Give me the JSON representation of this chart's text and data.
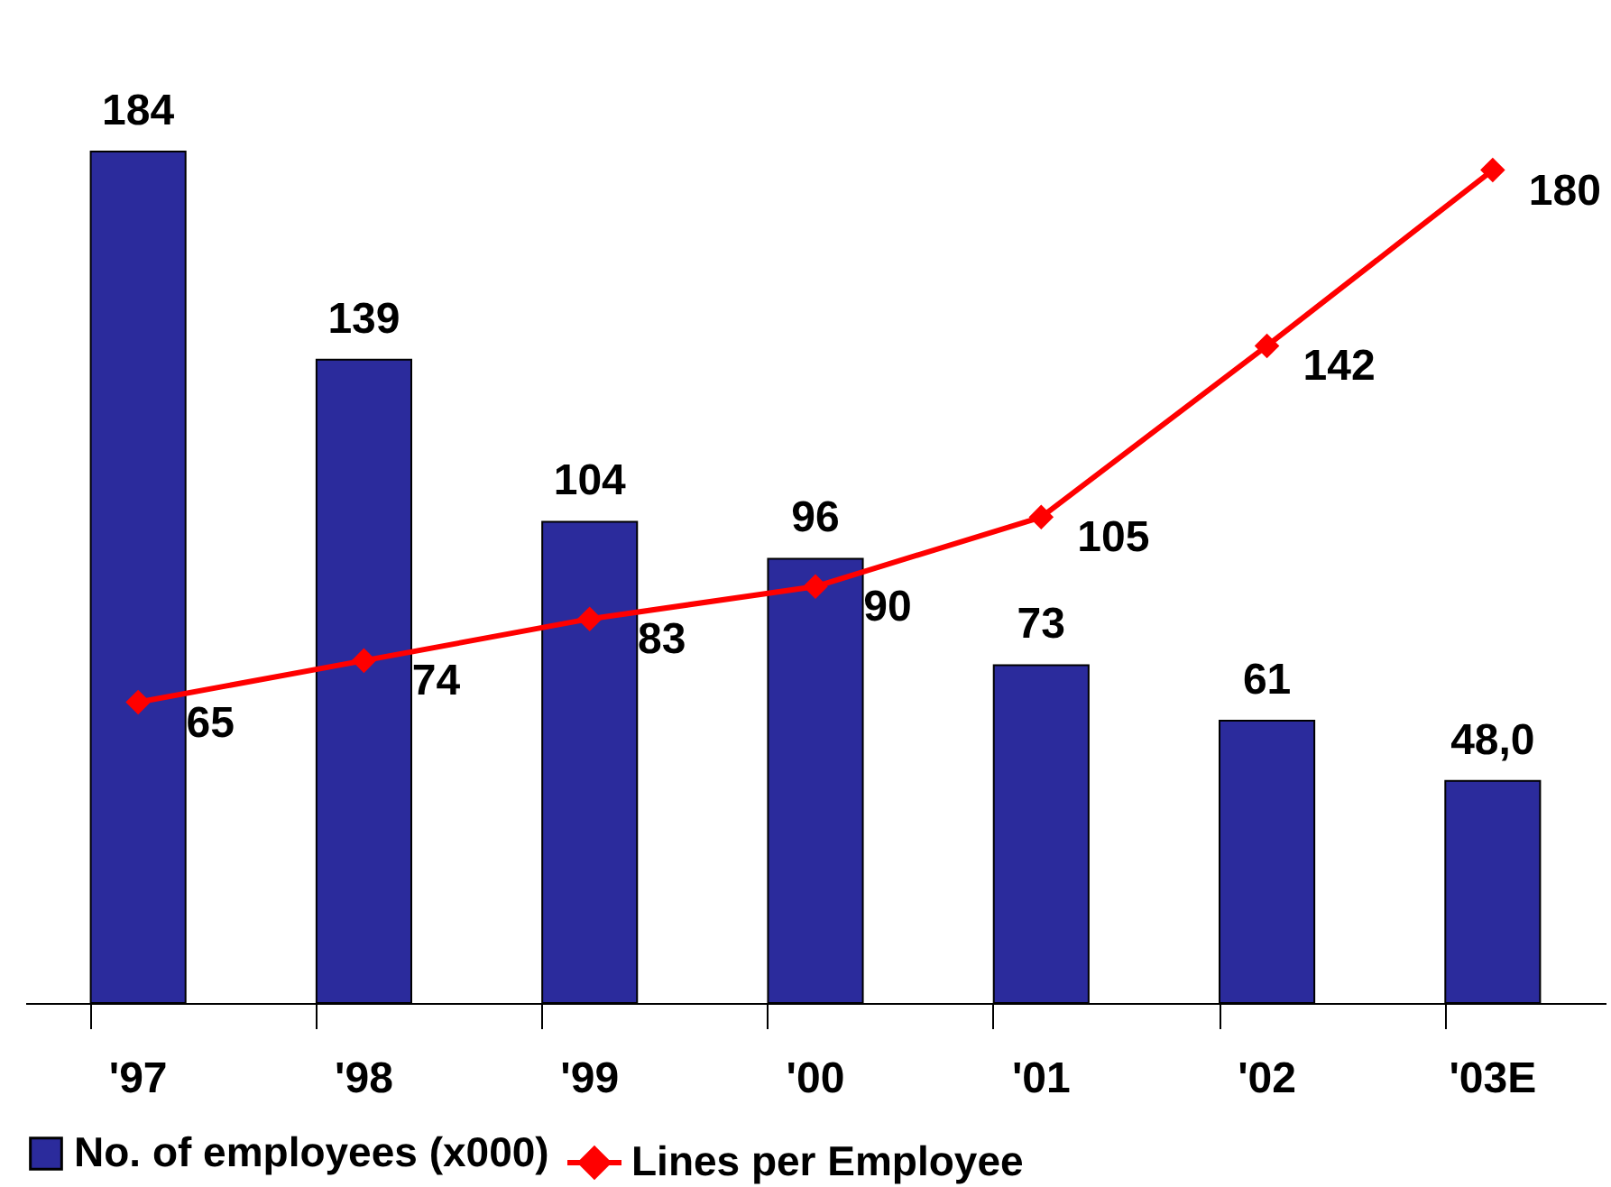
{
  "chart_data": {
    "type": "bar",
    "categories": [
      "'97",
      "'98",
      "'99",
      "'00",
      "'01",
      "'02",
      "'03E"
    ],
    "series": [
      {
        "name": "No. of employees (x000)",
        "color": "#2b2b9c",
        "values": [
          184,
          139,
          104,
          96,
          73,
          61,
          48.0
        ],
        "value_labels": [
          "184",
          "139",
          "104",
          "96",
          "73",
          "61",
          "48,0"
        ]
      },
      {
        "name": "Lines per Employee",
        "type": "line",
        "color": "#ff0000",
        "values": [
          65,
          74,
          83,
          90,
          105,
          142,
          180
        ],
        "value_labels": [
          "65",
          "74",
          "83",
          "90",
          "105",
          "142",
          "180"
        ],
        "marker": "diamond"
      }
    ],
    "grid": false,
    "legend": "bottom"
  }
}
